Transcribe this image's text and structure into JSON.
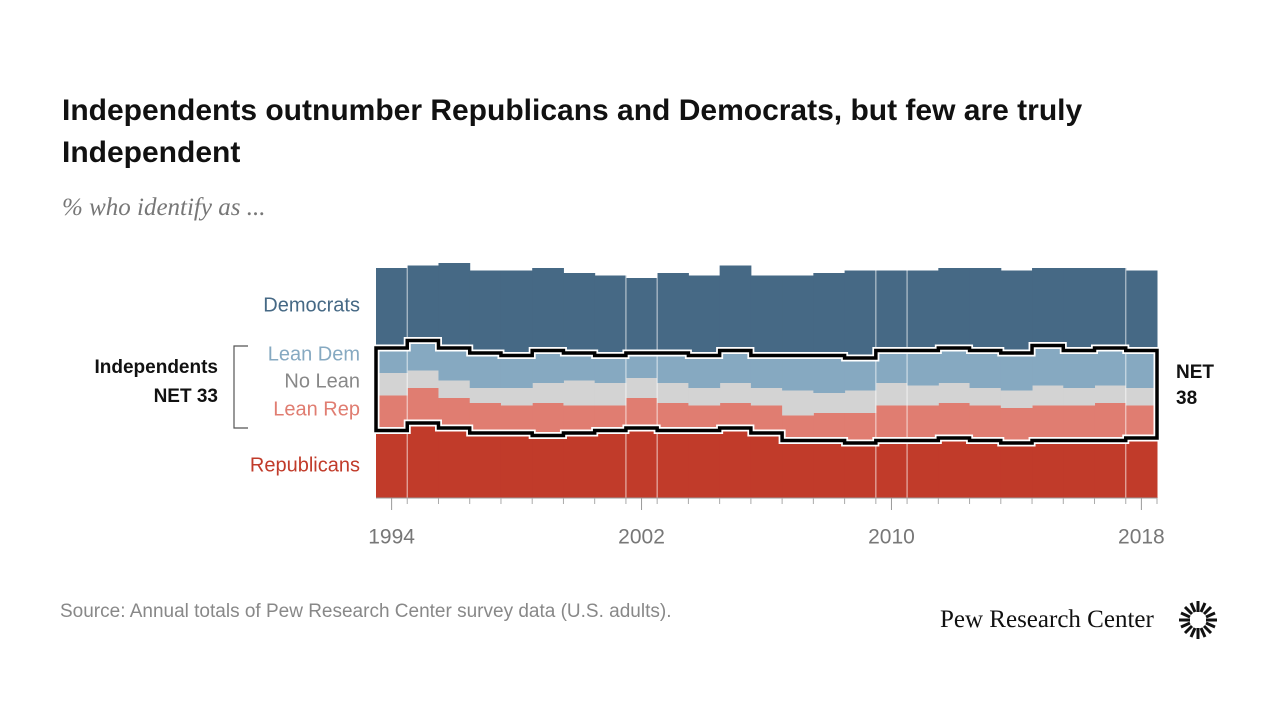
{
  "title": "Independents outnumber Republicans and Democrats, but few are truly Independent",
  "subtitle": "% who identify as ...",
  "source": "Source: Annual totals of Pew Research Center survey data (U.S. adults).",
  "brand": "Pew Research Center",
  "chart_data": {
    "type": "stacked-step-area",
    "x": [
      1994,
      1995,
      1996,
      1997,
      1998,
      1999,
      2000,
      2001,
      2002,
      2003,
      2004,
      2005,
      2006,
      2007,
      2008,
      2009,
      2010,
      2011,
      2012,
      2013,
      2014,
      2015,
      2016,
      2017,
      2018
    ],
    "xlim": [
      1994,
      2019
    ],
    "xticks": [
      1994,
      2002,
      2010,
      2018
    ],
    "ylim": [
      0,
      100
    ],
    "series": [
      {
        "name": "Republicans",
        "color": "#c13b2a",
        "values": [
          27,
          30,
          28,
          26,
          26,
          25,
          26,
          27,
          28,
          27,
          27,
          28,
          26,
          23,
          23,
          22,
          23,
          23,
          24,
          23,
          22,
          23,
          23,
          23,
          24
        ]
      },
      {
        "name": "Lean Rep",
        "color": "#e07d71",
        "values": [
          14,
          14,
          12,
          12,
          11,
          13,
          11,
          10,
          12,
          11,
          10,
          10,
          11,
          10,
          11,
          12,
          14,
          14,
          14,
          14,
          14,
          14,
          14,
          15,
          13
        ]
      },
      {
        "name": "No Lean",
        "color": "#d3d3d3",
        "values": [
          9,
          7,
          7,
          6,
          7,
          8,
          10,
          9,
          8,
          8,
          7,
          8,
          7,
          10,
          8,
          9,
          9,
          8,
          8,
          7,
          7,
          8,
          7,
          7,
          7
        ]
      },
      {
        "name": "Lean Dem",
        "color": "#86a9c1",
        "values": [
          10,
          12,
          13,
          14,
          13,
          13,
          11,
          11,
          10,
          12,
          13,
          13,
          13,
          14,
          15,
          13,
          13,
          14,
          14,
          15,
          15,
          16,
          15,
          15,
          15
        ]
      },
      {
        "name": "Democrats",
        "color": "#466985",
        "values": [
          32,
          30,
          34,
          33,
          34,
          33,
          32,
          32,
          30,
          32,
          32,
          34,
          32,
          32,
          33,
          35,
          32,
          32,
          32,
          33,
          33,
          31,
          33,
          32,
          32
        ]
      }
    ],
    "annotations": [
      "Independents",
      "NET 33",
      "NET 38"
    ]
  }
}
